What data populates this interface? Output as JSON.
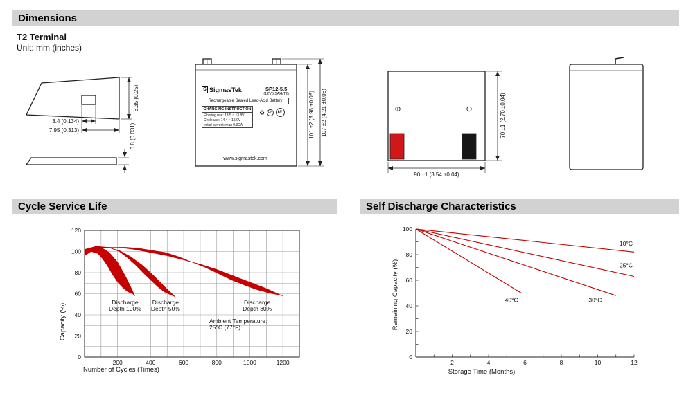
{
  "sections": {
    "dimensions": "Dimensions",
    "cycle_service_life": "Cycle Service Life",
    "self_discharge": "Self Discharge Characteristics"
  },
  "dimensions": {
    "terminal_type": "T2 Terminal",
    "unit": "Unit: mm (inches)",
    "terminal_drawing": {
      "height": "6.35 (0.25)",
      "hole_width": "3.4 (0.134)",
      "width": "7.95 (0.313)",
      "thickness": "0.8 (0.031)"
    },
    "front_view": {
      "logo_mark": "S",
      "brand": "SigmasTek",
      "model": "SP12-5.5",
      "rating": "(12V5.5AH/T2)",
      "battery_type": "Rechargeable Sealed Lead-Acid Battery",
      "charging_title": "CHARGING INSTRUCTION",
      "charging_line1": "Floating use: 13.5 ~ 13.8V",
      "charging_line2": "Cycle use: 14.4 ~ 15.0V",
      "charging_line3": "Initial current: max 0.3CA",
      "website": "www.sigmastek.com",
      "icons": {
        "recycle": "♻",
        "pb": "Pb",
        "ul": "UL"
      },
      "body_height": "101 ±2 (3.98 ±0.08)",
      "total_height": "107 ±2 (4.21 ±0.08)"
    },
    "rear_view": {
      "positive": "⊕",
      "negative": "⊖",
      "width": "90 ±1 (3.54 ±0.04)",
      "height": "70 ±1 (2.76 ±0.04)"
    }
  },
  "chart_data": [
    {
      "id": "cycle",
      "type": "area",
      "title": "Cycle Service Life",
      "xlabel": "Number of Cycles (Times)",
      "ylabel": "Capacity (%)",
      "xlim": [
        0,
        1300
      ],
      "ylim": [
        0,
        120
      ],
      "xticks": [
        200,
        400,
        600,
        800,
        1000,
        1200
      ],
      "yticks": [
        0,
        20,
        40,
        60,
        80,
        100,
        120
      ],
      "grid": {
        "x": 100,
        "y": 10
      },
      "color": "#c40000",
      "bands": [
        {
          "name": "Discharge Depth 100%",
          "points": [
            [
              0,
              101
            ],
            [
              50,
              104
            ],
            [
              100,
              104
            ],
            [
              150,
              99
            ],
            [
              200,
              90
            ],
            [
              250,
              76
            ],
            [
              290,
              63
            ],
            [
              305,
              58
            ],
            [
              290,
              60
            ],
            [
              260,
              62
            ],
            [
              230,
              66
            ],
            [
              200,
              71
            ],
            [
              170,
              78
            ],
            [
              140,
              86
            ],
            [
              110,
              93
            ],
            [
              80,
              98
            ],
            [
              40,
              100
            ],
            [
              0,
              96
            ]
          ]
        },
        {
          "name": "Discharge Depth 50%",
          "points": [
            [
              0,
              102
            ],
            [
              70,
              105
            ],
            [
              140,
              104
            ],
            [
              210,
              101
            ],
            [
              280,
              95
            ],
            [
              350,
              87
            ],
            [
              420,
              77
            ],
            [
              490,
              66
            ],
            [
              550,
              57
            ],
            [
              520,
              59
            ],
            [
              480,
              62
            ],
            [
              440,
              67
            ],
            [
              400,
              73
            ],
            [
              360,
              79
            ],
            [
              310,
              87
            ],
            [
              260,
              94
            ],
            [
              210,
              100
            ],
            [
              160,
              103
            ],
            [
              100,
              104
            ],
            [
              50,
              103
            ],
            [
              0,
              99
            ]
          ]
        },
        {
          "name": "Discharge Depth 30%",
          "points": [
            [
              0,
              101
            ],
            [
              100,
              104
            ],
            [
              200,
              104
            ],
            [
              300,
              102
            ],
            [
              400,
              99
            ],
            [
              500,
              96
            ],
            [
              600,
              92
            ],
            [
              700,
              88
            ],
            [
              800,
              83
            ],
            [
              900,
              77
            ],
            [
              1000,
              71
            ],
            [
              1100,
              65
            ],
            [
              1170,
              60
            ],
            [
              1200,
              58
            ],
            [
              1170,
              59
            ],
            [
              1110,
              61
            ],
            [
              1040,
              64
            ],
            [
              970,
              68
            ],
            [
              890,
              73
            ],
            [
              810,
              79
            ],
            [
              730,
              85
            ],
            [
              650,
              90
            ],
            [
              570,
              95
            ],
            [
              490,
              99
            ],
            [
              410,
              101
            ],
            [
              330,
              103
            ],
            [
              250,
              104
            ],
            [
              170,
              104
            ],
            [
              90,
              103
            ],
            [
              0,
              98
            ]
          ]
        }
      ],
      "annotations": [
        {
          "lines": [
            "Discharge",
            "Depth 100%"
          ],
          "x": 245,
          "y": 50
        },
        {
          "lines": [
            "Discharge",
            "Depth 50%"
          ],
          "x": 490,
          "y": 50
        },
        {
          "lines": [
            "Discharge",
            "Depth 30%"
          ],
          "x": 1045,
          "y": 50
        },
        {
          "lines": [
            "Ambient Temperature:",
            "25°C (77°F)"
          ],
          "x": 755,
          "y": 32,
          "align": "start"
        }
      ]
    },
    {
      "id": "discharge",
      "type": "line",
      "title": "Self Discharge Characteristics",
      "xlabel": "Storage Time (Months)",
      "ylabel": "Remaining Capacity (%)",
      "xlim": [
        0,
        12
      ],
      "ylim": [
        0,
        100
      ],
      "xticks": [
        2,
        4,
        6,
        8,
        10,
        12
      ],
      "yticks": [
        0,
        20,
        40,
        60,
        80,
        100
      ],
      "minor": {
        "x": 1,
        "y": 10
      },
      "color": "#c40000",
      "dashed_y": 50,
      "series": [
        {
          "name": "10°C",
          "points": [
            [
              0,
              100
            ],
            [
              12,
              82
            ]
          ],
          "label_at": [
            11.2,
            87
          ]
        },
        {
          "name": "25°C",
          "points": [
            [
              0,
              100
            ],
            [
              12,
              63
            ]
          ],
          "label_at": [
            11.2,
            70
          ]
        },
        {
          "name": "30°C",
          "points": [
            [
              0,
              100
            ],
            [
              11,
              48
            ]
          ],
          "label_at": [
            9.5,
            43
          ]
        },
        {
          "name": "40°C",
          "points": [
            [
              0,
              100
            ],
            [
              5.8,
              50
            ]
          ],
          "label_at": [
            4.9,
            43
          ]
        }
      ]
    }
  ]
}
